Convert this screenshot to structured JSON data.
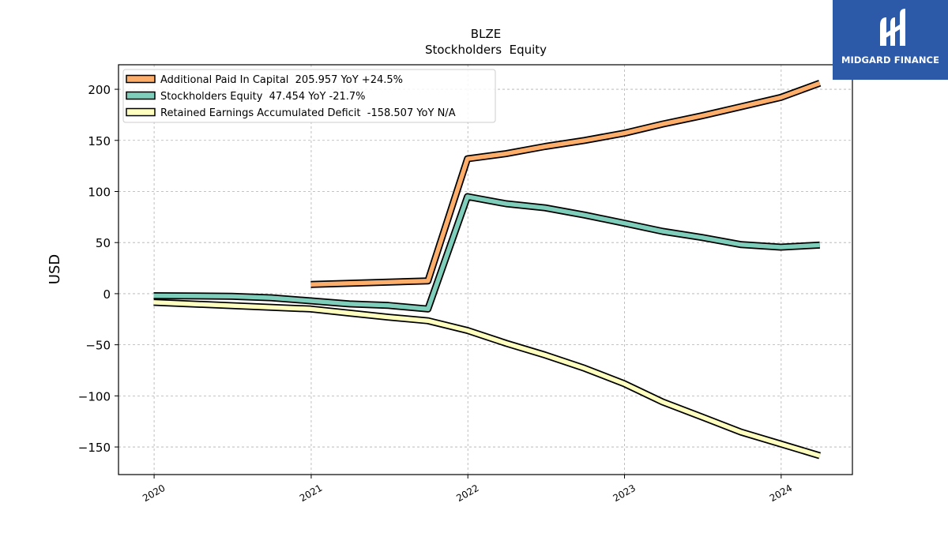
{
  "logo": {
    "text": "MIDGARD FINANCE",
    "bg_color": "#2d5aa8"
  },
  "chart_data": {
    "type": "line",
    "title": "BLZE",
    "subtitle": "Stockholders  Equity",
    "ylabel": "USD",
    "xlabel": "",
    "xlim": [
      "2019-10-10",
      "2024-06-15"
    ],
    "ylim": [
      -177,
      224
    ],
    "yticks": [
      200,
      150,
      100,
      50,
      0,
      -50,
      -100,
      -150
    ],
    "ytick_labels": [
      "200",
      "150",
      "100",
      "50",
      "0",
      "−50",
      "−100",
      "−150"
    ],
    "xticks": [
      "2020-01-01",
      "2021-01-01",
      "2022-01-01",
      "2023-01-01",
      "2024-01-01"
    ],
    "xtick_labels": [
      "2020",
      "2021",
      "2022",
      "2023",
      "2024"
    ],
    "grid": true,
    "legend_position": "top-left",
    "series": [
      {
        "name": "Additional Paid In Capital",
        "legend_label": "Additional Paid In Capital  205.957 YoY +24.5%",
        "color": "#fdae6b",
        "points": [
          [
            "2020-12-31",
            9
          ],
          [
            "2021-09-30",
            12.5
          ],
          [
            "2021-12-31",
            132
          ],
          [
            "2022-03-31",
            137
          ],
          [
            "2022-06-30",
            144
          ],
          [
            "2022-09-30",
            150
          ],
          [
            "2022-12-31",
            157
          ],
          [
            "2023-03-31",
            166
          ],
          [
            "2023-06-30",
            174
          ],
          [
            "2023-09-30",
            183
          ],
          [
            "2023-12-31",
            192
          ],
          [
            "2024-03-31",
            206
          ]
        ]
      },
      {
        "name": "Stockholders Equity",
        "legend_label": "Stockholders Equity  47.454 YoY -21.7%",
        "color": "#7fcdbb",
        "points": [
          [
            "2019-12-31",
            -2
          ],
          [
            "2020-06-30",
            -2.5
          ],
          [
            "2020-09-30",
            -4
          ],
          [
            "2020-12-31",
            -7
          ],
          [
            "2021-03-31",
            -10
          ],
          [
            "2021-06-30",
            -11.5
          ],
          [
            "2021-09-30",
            -15
          ],
          [
            "2021-12-31",
            95
          ],
          [
            "2022-03-31",
            88
          ],
          [
            "2022-06-30",
            84
          ],
          [
            "2022-09-30",
            77
          ],
          [
            "2022-12-31",
            69
          ],
          [
            "2023-03-31",
            61
          ],
          [
            "2023-06-30",
            55
          ],
          [
            "2023-09-30",
            48
          ],
          [
            "2023-12-31",
            45.5
          ],
          [
            "2024-03-31",
            47.5
          ]
        ]
      },
      {
        "name": "Retained Earnings Accumulated Deficit",
        "legend_label": "Retained Earnings Accumulated Deficit  -158.507 YoY N/A",
        "color": "#ffffbf",
        "points": [
          [
            "2019-12-31",
            -8.5
          ],
          [
            "2020-12-31",
            -15
          ],
          [
            "2021-03-31",
            -19
          ],
          [
            "2021-06-30",
            -23
          ],
          [
            "2021-09-30",
            -26.5
          ],
          [
            "2021-12-31",
            -36
          ],
          [
            "2022-03-31",
            -48.5
          ],
          [
            "2022-06-30",
            -60
          ],
          [
            "2022-09-30",
            -73
          ],
          [
            "2022-12-31",
            -88
          ],
          [
            "2023-03-31",
            -106
          ],
          [
            "2023-06-30",
            -120.5
          ],
          [
            "2023-09-30",
            -135.5
          ],
          [
            "2023-12-31",
            -147
          ],
          [
            "2024-03-31",
            -158.5
          ]
        ]
      }
    ]
  }
}
